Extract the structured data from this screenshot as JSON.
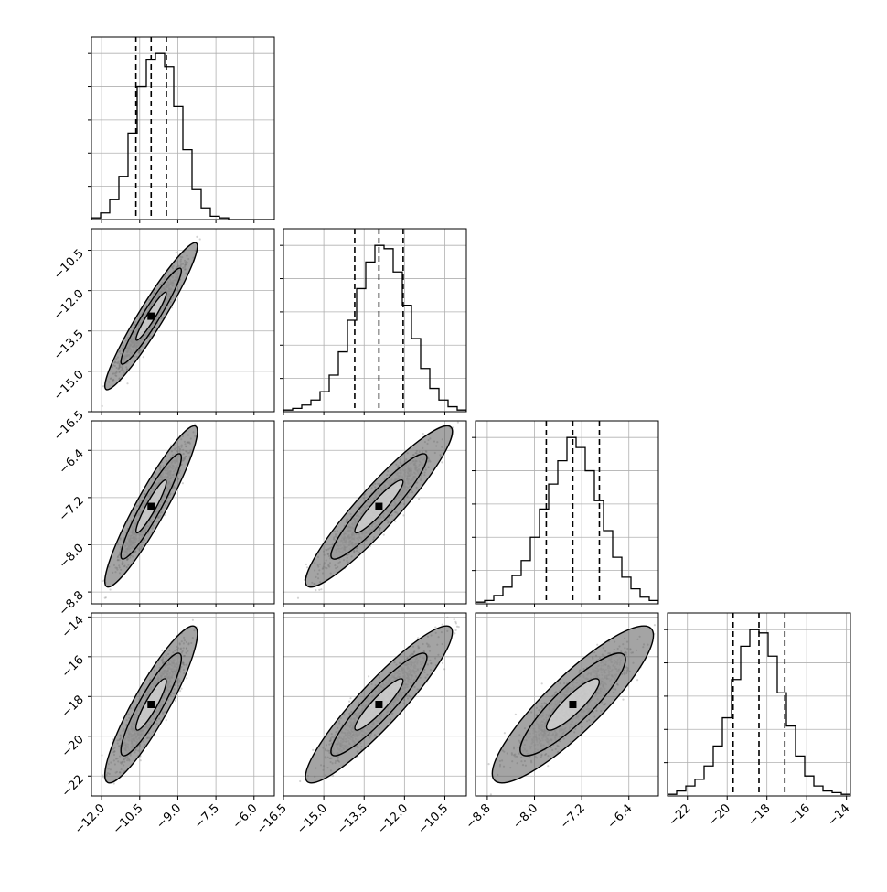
{
  "chart_data": {
    "type": "corner",
    "note": "Corner plot of 4 parameters: 1D histograms on diagonal (with 16/50/84 percentile dashed lines), 2D density scatter + contours below diagonal.",
    "parameters": [
      {
        "ticks": [
          -12.0,
          -10.5,
          -9.0,
          -7.5,
          -6.0
        ],
        "tick_labels": [
          "−12.0",
          "−10.5",
          "−9.0",
          "−7.5",
          "−6.0"
        ],
        "range": [
          -12.4,
          -5.2
        ],
        "quantiles": [
          -10.65,
          -10.05,
          -9.45
        ]
      },
      {
        "ticks": [
          -16.5,
          -15.0,
          -13.5,
          -12.0,
          -10.5
        ],
        "tick_labels": [
          "−16.5",
          "−15.0",
          "−13.5",
          "−12.0",
          "−10.5"
        ],
        "range": [
          -16.5,
          -9.7
        ],
        "quantiles": [
          -13.85,
          -12.95,
          -12.05
        ]
      },
      {
        "ticks": [
          -8.8,
          -8.0,
          -7.2,
          -6.4
        ],
        "tick_labels": [
          "−8.8",
          "−8.0",
          "−7.2",
          "−6.4"
        ],
        "range": [
          -9.0,
          -5.9
        ],
        "quantiles": [
          -7.8,
          -7.35,
          -6.9
        ]
      },
      {
        "ticks": [
          -22,
          -20,
          -18,
          -16,
          -14
        ],
        "tick_labels": [
          "−22",
          "−20",
          "−18",
          "−16",
          "−14"
        ],
        "range": [
          -23.0,
          -13.8
        ],
        "quantiles": [
          -19.7,
          -18.4,
          -17.1
        ]
      }
    ],
    "histograms": [
      [
        1,
        4,
        12,
        26,
        52,
        80,
        96,
        100,
        92,
        68,
        42,
        18,
        7,
        2,
        1,
        0,
        0,
        0,
        0,
        0
      ],
      [
        1,
        2,
        4,
        7,
        12,
        22,
        36,
        55,
        74,
        90,
        100,
        98,
        84,
        64,
        44,
        26,
        14,
        7,
        3,
        1
      ],
      [
        1,
        2,
        5,
        10,
        17,
        26,
        40,
        57,
        72,
        86,
        100,
        94,
        80,
        62,
        44,
        28,
        16,
        9,
        4,
        2
      ],
      [
        1,
        3,
        6,
        10,
        18,
        30,
        47,
        70,
        90,
        100,
        98,
        84,
        62,
        42,
        24,
        12,
        6,
        3,
        2,
        1
      ]
    ],
    "hist_ylim": [
      0,
      110
    ],
    "correlations": [
      [
        1,
        0.95,
        0.93,
        0.9
      ],
      [
        0.95,
        1,
        0.93,
        0.92
      ],
      [
        0.93,
        0.93,
        1,
        0.88
      ],
      [
        0.9,
        0.92,
        0.88,
        1
      ]
    ],
    "contour_levels": [
      0.39,
      0.86,
      0.99
    ],
    "colors": {
      "line": "#000000",
      "scatter": "#808080",
      "grid": "#b0b0b0"
    },
    "grid": true
  }
}
